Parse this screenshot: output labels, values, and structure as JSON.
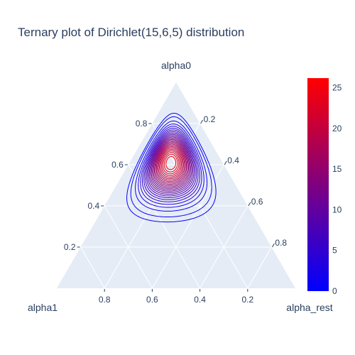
{
  "chart_data": {
    "type": "ternary-contour",
    "title": "Ternary plot of Dirichlet(15,6,5) distribution",
    "axes": {
      "a": {
        "title": "alpha0",
        "ticks": [
          0.2,
          0.4,
          0.6,
          0.8
        ],
        "tick_labels": [
          "0.2",
          "0.4",
          "0.6",
          "0.8"
        ]
      },
      "b": {
        "title": "alpha1",
        "ticks": [
          0.8,
          0.6,
          0.4,
          0.2
        ],
        "tick_labels": [
          "0.8",
          "0.6",
          "0.4",
          "0.2"
        ]
      },
      "c": {
        "title": "alpha_rest",
        "ticks": [
          0.2,
          0.4,
          0.6,
          0.8
        ],
        "tick_labels": [
          "0.2",
          "0.4",
          "0.6",
          "0.8"
        ]
      }
    },
    "dirichlet_alpha": [
      15,
      6,
      5
    ],
    "contour_levels": [
      0.5,
      1,
      2,
      3,
      4,
      5,
      6,
      7,
      8,
      9,
      10,
      11,
      12,
      13,
      14,
      15,
      16,
      17,
      18,
      19,
      20,
      21,
      22,
      23,
      24,
      25
    ],
    "colorbar": {
      "range": [
        0,
        26.2
      ],
      "ticks": [
        0,
        5,
        10,
        15,
        20,
        25
      ],
      "tick_labels": [
        "0",
        "5",
        "10",
        "15",
        "20",
        "25"
      ],
      "colorscale": [
        "#0000ff",
        "#ff0000"
      ]
    },
    "grid": true
  }
}
